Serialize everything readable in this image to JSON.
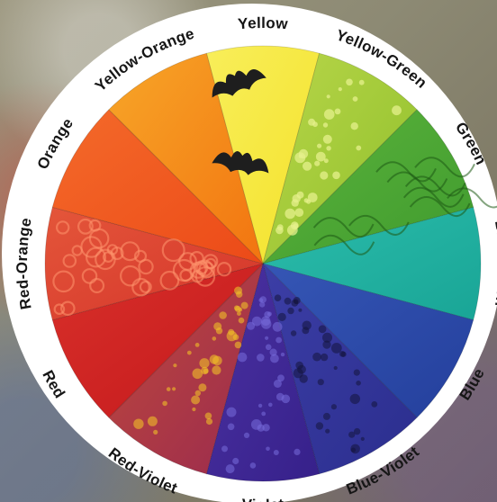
{
  "wheel": {
    "segments": [
      {
        "key": "yellow",
        "label": "Yellow",
        "color": "#f4e22a",
        "color2": "#f8ee5a"
      },
      {
        "key": "yellow-green",
        "label": "Yellow-Green",
        "color": "#8fbf2a",
        "color2": "#b8d64a"
      },
      {
        "key": "green",
        "label": "Green",
        "color": "#3f9a2e",
        "color2": "#5cb43c"
      },
      {
        "key": "blue-green",
        "label": "Blue-Green",
        "color": "#19a596",
        "color2": "#2bbcab"
      },
      {
        "key": "blue",
        "label": "Blue",
        "color": "#243f9c",
        "color2": "#3556b5"
      },
      {
        "key": "blue-violet",
        "label": "Blue-Violet",
        "color": "#2b2e8e",
        "color2": "#3c3ea6"
      },
      {
        "key": "violet",
        "label": "Violet",
        "color": "#36208a",
        "color2": "#4b32a2"
      },
      {
        "key": "red-violet",
        "label": "Red-Violet",
        "color": "#9a2a4e",
        "color2": "#c04a3c"
      },
      {
        "key": "red",
        "label": "Red",
        "color": "#c4181c",
        "color2": "#d8302a"
      },
      {
        "key": "red-orange",
        "label": "Red-Orange",
        "color": "#d4342a",
        "color2": "#e4563a"
      },
      {
        "key": "orange",
        "label": "Orange",
        "color": "#ec4a18",
        "color2": "#f46a2a"
      },
      {
        "key": "yellow-orange",
        "label": "Yellow-Orange",
        "color": "#f27410",
        "color2": "#f7a628"
      }
    ]
  }
}
